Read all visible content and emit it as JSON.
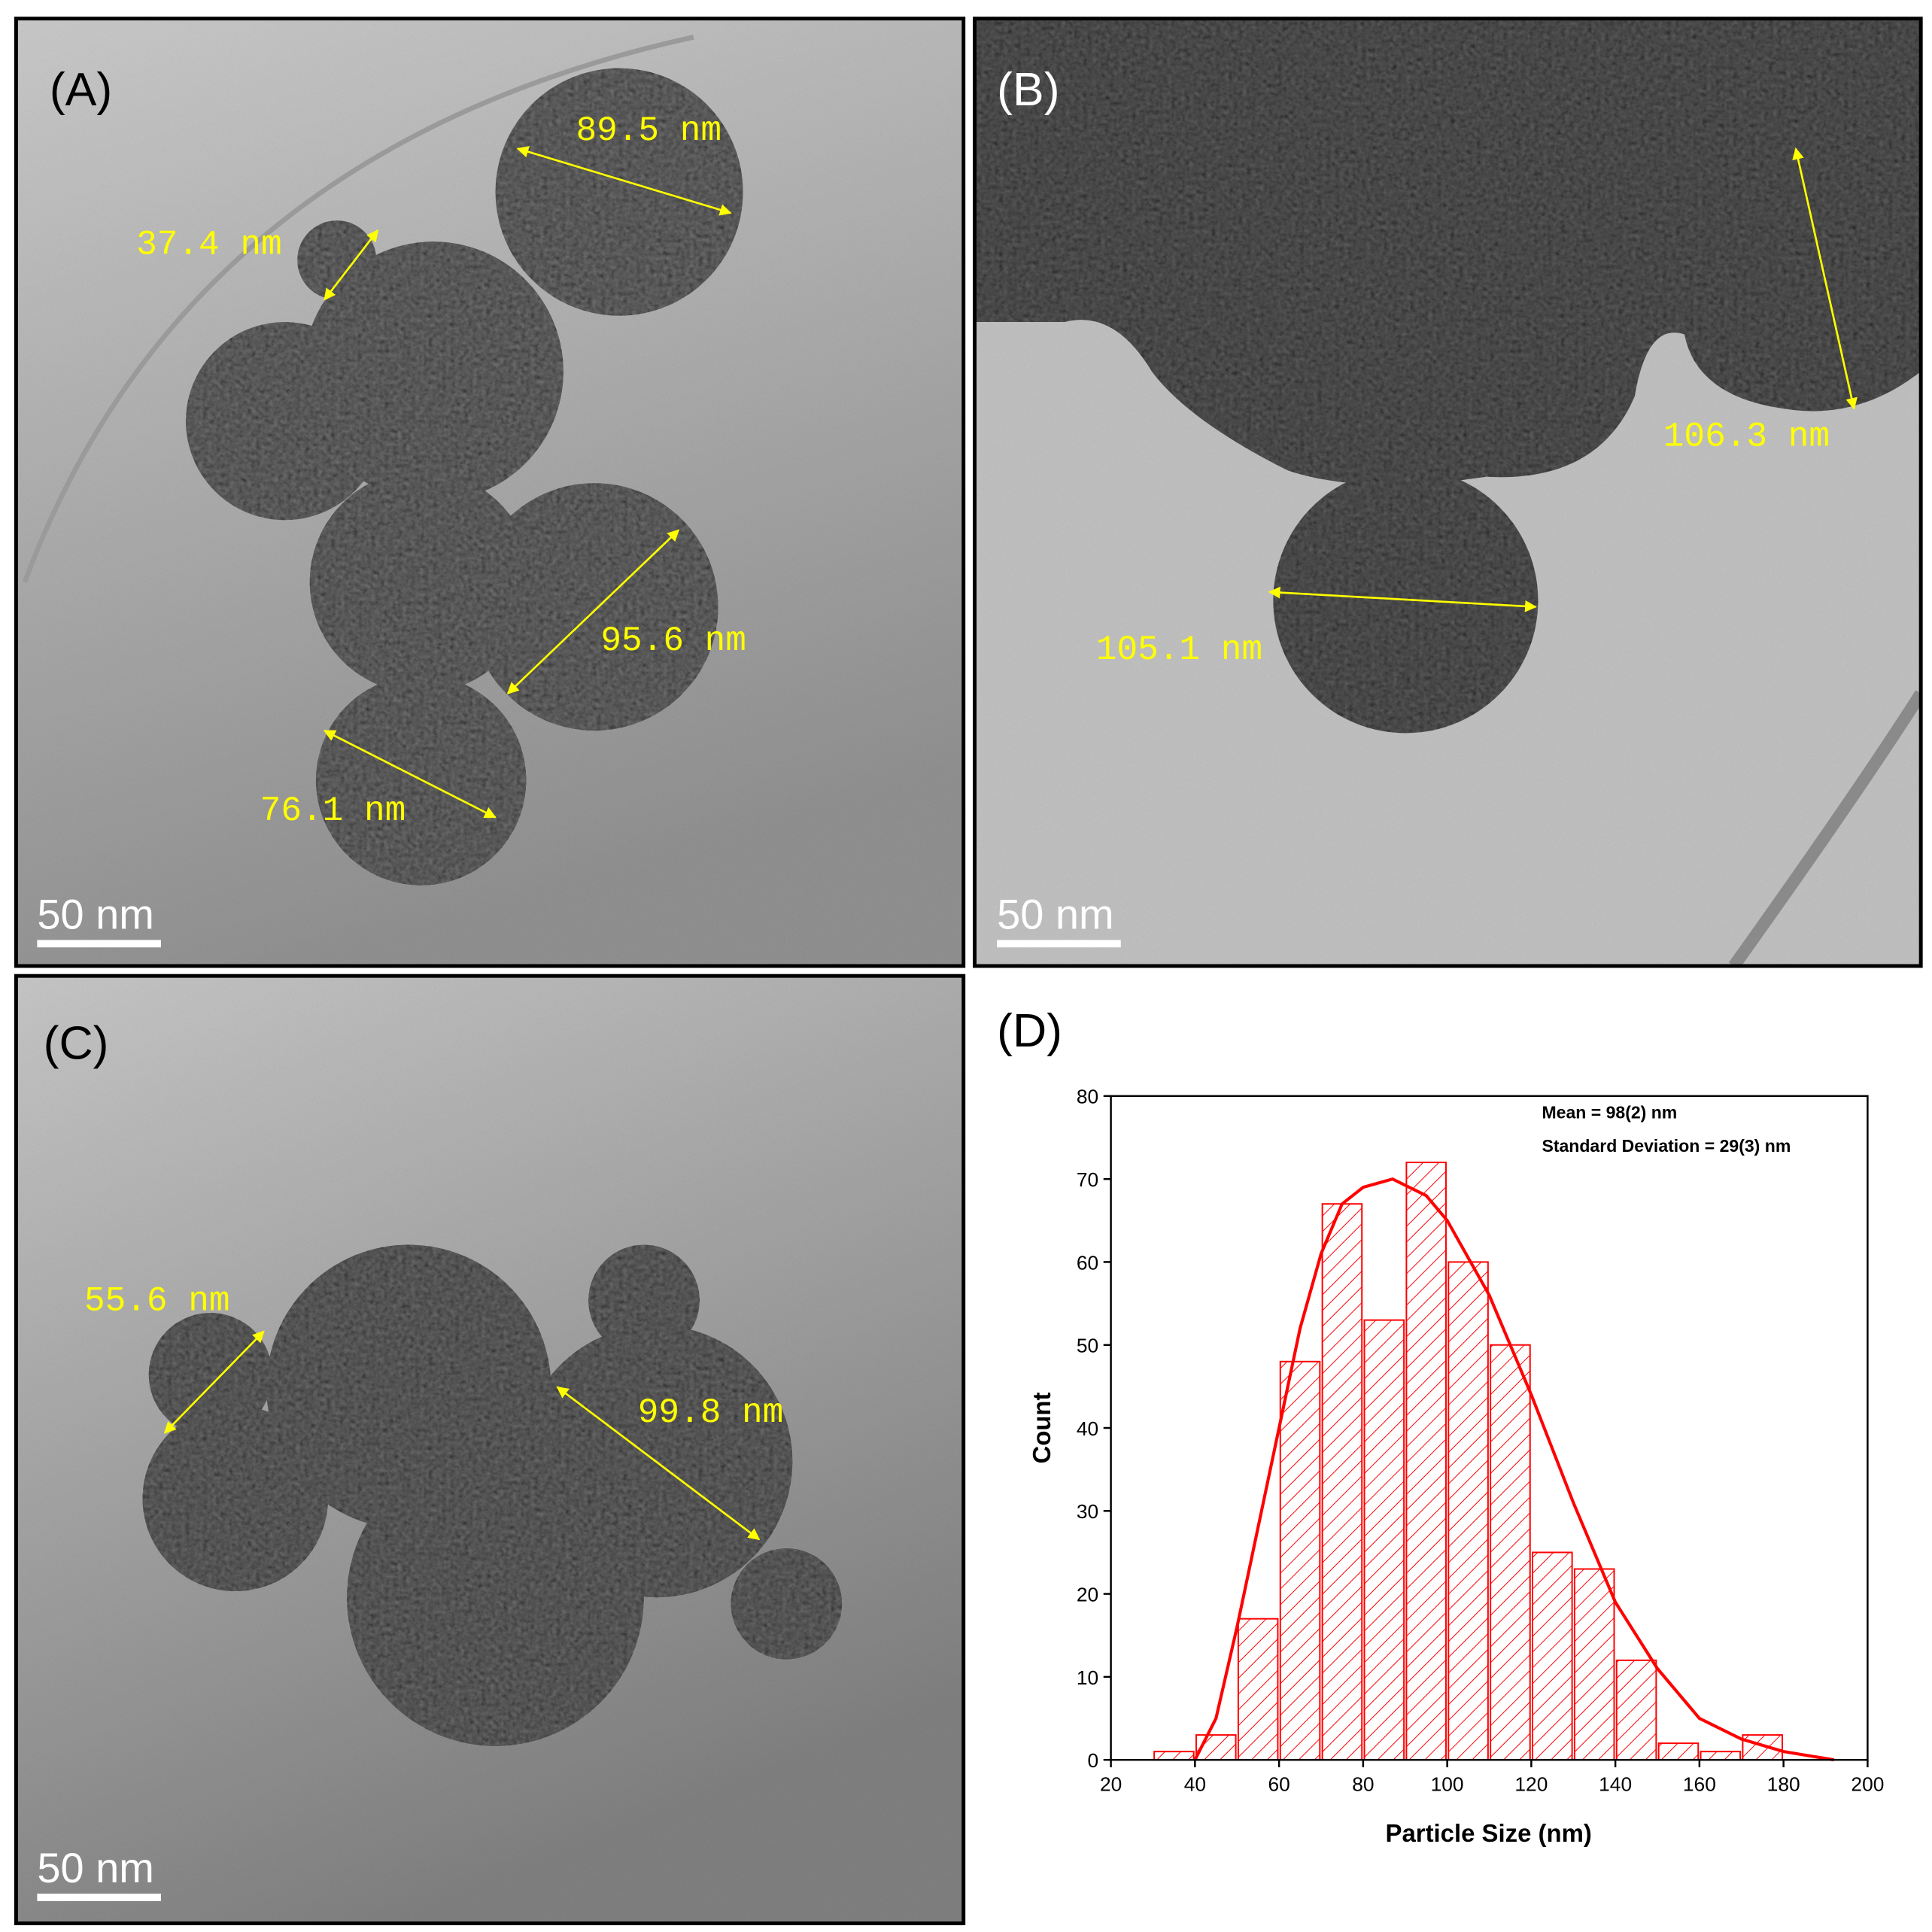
{
  "panels": [
    {
      "label": "(A)",
      "scale_bar": "50 nm",
      "annotations": [
        "89.5 nm",
        "37.4 nm",
        "95.6 nm",
        "76.1 nm"
      ]
    },
    {
      "label": "(B)",
      "scale_bar": "50 nm",
      "annotations": [
        "106.3 nm",
        "105.1 nm"
      ]
    },
    {
      "label": "(C)",
      "scale_bar": "50 nm",
      "annotations": [
        "55.6 nm",
        "99.8 nm"
      ]
    }
  ],
  "chart_data": {
    "type": "histogram",
    "panel_label": "(D)",
    "xlabel": "Particle Size (nm)",
    "ylabel": "Count",
    "annotations": [
      "Mean = 98(2) nm",
      "Standard Deviation = 29(3) nm"
    ],
    "bins": [
      30,
      40,
      50,
      60,
      70,
      80,
      90,
      100,
      110,
      120,
      130,
      140,
      150,
      160,
      170,
      180
    ],
    "values": [
      1,
      3,
      17,
      48,
      67,
      53,
      72,
      60,
      50,
      25,
      23,
      12,
      2,
      1,
      3
    ],
    "color": "#ff0000",
    "fit": {
      "x": [
        40,
        45,
        50,
        55,
        60,
        65,
        70,
        75,
        80,
        87,
        95,
        100,
        110,
        120,
        130,
        140,
        150,
        160,
        170,
        180,
        192
      ],
      "values": [
        0,
        5,
        16,
        28,
        40,
        52,
        61,
        67,
        69,
        70,
        68,
        65,
        56,
        44,
        31,
        19,
        11,
        5,
        2.5,
        1,
        0
      ]
    },
    "xlim": [
      20,
      200
    ],
    "ylim": [
      0,
      80
    ],
    "xticks": [
      20,
      40,
      60,
      80,
      100,
      120,
      140,
      160,
      180,
      200
    ],
    "yticks": [
      0,
      10,
      20,
      30,
      40,
      50,
      60,
      70,
      80
    ]
  }
}
